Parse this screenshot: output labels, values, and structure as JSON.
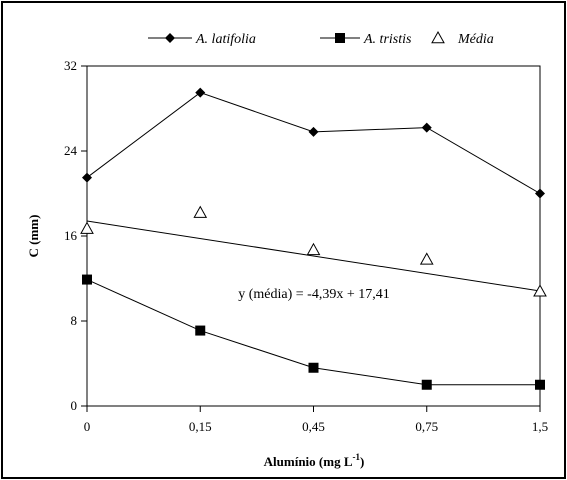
{
  "chart_data": {
    "type": "line",
    "categories": [
      "0",
      "0,15",
      "0,45",
      "0,75",
      "1,5"
    ],
    "series": [
      {
        "name": "A. latifolia",
        "marker": "diamond",
        "color": "#000000",
        "values": [
          21.5,
          29.5,
          25.8,
          26.2,
          20.0
        ]
      },
      {
        "name": "A. tristis",
        "marker": "square",
        "color": "#000000",
        "values": [
          11.9,
          7.1,
          3.6,
          2.0,
          2.0
        ]
      },
      {
        "name": "Média",
        "marker": "triangle-open",
        "color": "#000000",
        "values": [
          16.7,
          18.2,
          14.7,
          13.8,
          10.8
        ]
      }
    ],
    "trendline": {
      "series": "Média",
      "slope": -4.39,
      "intercept": 17.41,
      "label": "y (média) = -4,39x + 17,41"
    },
    "xlabel": "Alumínio (mg L",
    "xlabel_sup": "-1",
    "xlabel_close": ")",
    "ylabel": "C (mm)",
    "ylim": [
      0,
      32
    ],
    "yticks": [
      "0",
      "8",
      "16",
      "24",
      "32"
    ],
    "grid": false,
    "legend_position": "top"
  }
}
